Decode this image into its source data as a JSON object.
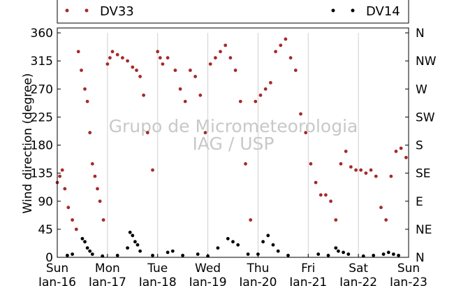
{
  "chart_data": {
    "type": "scatter",
    "ylabel": "Wind direction (degree)",
    "ylim": [
      0,
      360
    ],
    "yticks": [
      0,
      45,
      90,
      135,
      180,
      225,
      270,
      315,
      360
    ],
    "compass_ticks": [
      "N",
      "NE",
      "E",
      "SE",
      "S",
      "SW",
      "W",
      "NW",
      "N"
    ],
    "xlim": [
      0,
      7
    ],
    "x_unit": "days since Sun Jan-16",
    "x_tick_labels": [
      {
        "day": "Sun",
        "date": "Jan-16"
      },
      {
        "day": "Mon",
        "date": "Jan-17"
      },
      {
        "day": "Tue",
        "date": "Jan-18"
      },
      {
        "day": "Wed",
        "date": "Jan-19"
      },
      {
        "day": "Thu",
        "date": "Jan-20"
      },
      {
        "day": "Fri",
        "date": "Jan-21"
      },
      {
        "day": "Sat",
        "date": "Jan-22"
      },
      {
        "day": "Sun",
        "date": "Jan-23"
      }
    ],
    "grid": "vertical-only",
    "legend_placement": "top",
    "watermark": [
      "Grupo de Micrometeorologia",
      "IAG / USP"
    ],
    "series": [
      {
        "name": "DV33",
        "color": "#a52a2a",
        "x": [
          0.0,
          0.05,
          0.1,
          0.15,
          0.22,
          0.3,
          0.38,
          0.42,
          0.48,
          0.55,
          0.6,
          0.65,
          0.7,
          0.75,
          0.8,
          0.85,
          0.92,
          1.0,
          1.05,
          1.1,
          1.2,
          1.3,
          1.4,
          1.5,
          1.58,
          1.65,
          1.72,
          1.8,
          1.9,
          2.0,
          2.05,
          2.1,
          2.2,
          2.35,
          2.45,
          2.55,
          2.65,
          2.75,
          2.85,
          2.95,
          3.05,
          3.15,
          3.25,
          3.35,
          3.45,
          3.55,
          3.65,
          3.75,
          3.85,
          3.95,
          4.05,
          4.15,
          4.25,
          4.35,
          4.45,
          4.55,
          4.65,
          4.75,
          4.85,
          4.95,
          5.05,
          5.15,
          5.25,
          5.35,
          5.45,
          5.55,
          5.65,
          5.75,
          5.85,
          5.95,
          6.05,
          6.15,
          6.25,
          6.35,
          6.45,
          6.55,
          6.65,
          6.75,
          6.85,
          6.95
        ],
        "y": [
          120,
          130,
          140,
          110,
          80,
          60,
          45,
          330,
          300,
          270,
          250,
          200,
          150,
          130,
          110,
          90,
          60,
          310,
          320,
          330,
          325,
          320,
          315,
          305,
          300,
          290,
          260,
          200,
          140,
          330,
          320,
          310,
          320,
          300,
          270,
          250,
          300,
          290,
          260,
          200,
          310,
          320,
          330,
          340,
          320,
          300,
          250,
          150,
          60,
          250,
          260,
          270,
          280,
          330,
          340,
          350,
          320,
          300,
          230,
          200,
          150,
          120,
          100,
          100,
          90,
          60,
          150,
          170,
          145,
          140,
          140,
          135,
          140,
          130,
          80,
          60,
          130,
          170,
          175,
          160
        ]
      },
      {
        "name": "DV14",
        "color": "#000000",
        "x": [
          0.2,
          0.3,
          0.5,
          0.55,
          0.6,
          0.65,
          0.7,
          0.9,
          1.2,
          1.4,
          1.45,
          1.5,
          1.55,
          1.6,
          1.65,
          1.9,
          2.2,
          2.3,
          2.5,
          2.8,
          3.0,
          3.2,
          3.4,
          3.5,
          3.6,
          3.8,
          4.0,
          4.1,
          4.2,
          4.3,
          4.4,
          4.6,
          5.2,
          5.4,
          5.55,
          5.6,
          5.7,
          5.8,
          6.1,
          6.3,
          6.5,
          6.6,
          6.7,
          6.8
        ],
        "y": [
          3,
          5,
          30,
          25,
          15,
          10,
          5,
          2,
          3,
          15,
          40,
          35,
          25,
          20,
          10,
          3,
          8,
          10,
          3,
          5,
          2,
          15,
          30,
          25,
          20,
          5,
          5,
          25,
          35,
          20,
          10,
          3,
          5,
          3,
          15,
          10,
          8,
          5,
          2,
          3,
          5,
          8,
          5,
          3
        ]
      }
    ]
  }
}
